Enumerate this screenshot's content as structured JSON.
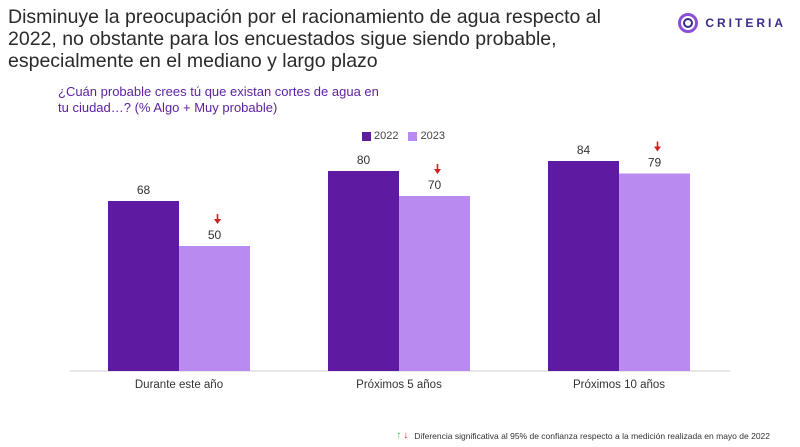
{
  "header": {
    "title": "Disminuye la preocupación por el racionamiento de agua respecto al 2022, no obstante para los encuestados sigue siendo probable, especialmente en el mediano y largo plazo"
  },
  "brand": {
    "name": "CRITERIA",
    "logo_icon": "criteria-ring-icon"
  },
  "question": "¿Cuán probable crees tú que existan cortes de agua en tu ciudad…? (% Algo + Muy probable)",
  "colors": {
    "series_2022": "#5e1aa0",
    "series_2023": "#b98af0",
    "accent": "#5b1fa0",
    "down_arrow": "#d21f1f",
    "up_arrow": "#2eb84a"
  },
  "chart_data": {
    "type": "bar",
    "title": "¿Cuán probable crees tú que existan cortes de agua en tu ciudad…? (% Algo + Muy probable)",
    "categories": [
      "Durante este año",
      "Próximos 5 años",
      "Próximos 10 años"
    ],
    "series": [
      {
        "name": "2022",
        "values": [
          68,
          80,
          84
        ]
      },
      {
        "name": "2023",
        "values": [
          50,
          70,
          79
        ]
      }
    ],
    "significant_decrease_2023": [
      true,
      true,
      true
    ],
    "ylim": [
      0,
      100
    ],
    "xlabel": "",
    "ylabel": "",
    "grid": false,
    "legend_position": "top-center"
  },
  "footnote": {
    "text": "Diferencia significativa al 95% de confianza respecto a la medición realizada en mayo de 2022",
    "up_icon": "arrow-up-icon",
    "down_icon": "arrow-down-icon"
  }
}
